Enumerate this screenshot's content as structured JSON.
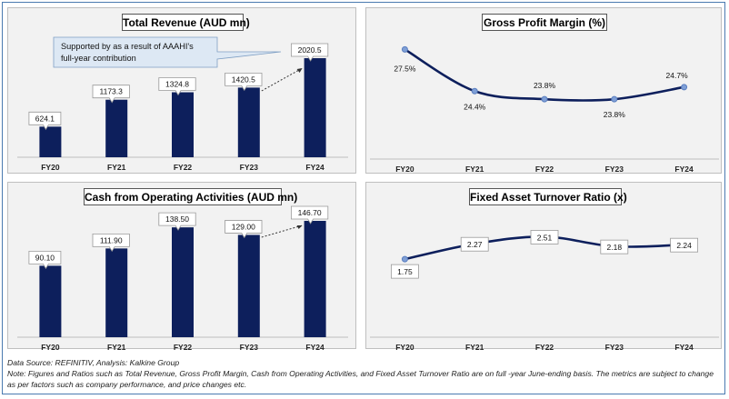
{
  "chart_data": [
    {
      "type": "bar",
      "title": "Total Revenue (AUD mn)",
      "categories": [
        "FY20",
        "FY21",
        "FY22",
        "FY23",
        "FY24"
      ],
      "values": [
        624.1,
        1173.3,
        1324.8,
        1420.5,
        2020.5
      ],
      "labels": [
        "624.1",
        "1173.3",
        "1324.8",
        "1420.5",
        "2020.5"
      ],
      "annotation": "Supported by as a result of AAAHI's full-year contribution",
      "color": "#0d1f5c",
      "ylim": [
        0,
        2020.5
      ]
    },
    {
      "type": "line",
      "title": "Gross Profit Margin (%)",
      "categories": [
        "FY20",
        "FY21",
        "FY22",
        "FY23",
        "FY24"
      ],
      "values": [
        27.5,
        24.4,
        23.8,
        23.8,
        24.7
      ],
      "labels": [
        "27.5%",
        "24.4%",
        "23.8%",
        "23.8%",
        "24.7%"
      ],
      "color": "#0d1f5c",
      "ylim": [
        23,
        28
      ]
    },
    {
      "type": "bar",
      "title": "Cash from Operating Activities (AUD mn)",
      "categories": [
        "FY20",
        "FY21",
        "FY22",
        "FY23",
        "FY24"
      ],
      "values": [
        90.1,
        111.9,
        138.5,
        129.0,
        146.7
      ],
      "labels": [
        "90.10",
        "111.90",
        "138.50",
        "129.00",
        "146.70"
      ],
      "color": "#0d1f5c",
      "ylim": [
        0,
        146.7
      ]
    },
    {
      "type": "line",
      "title": "Fixed Asset Turnover Ratio (x)",
      "categories": [
        "FY20",
        "FY21",
        "FY22",
        "FY23",
        "FY24"
      ],
      "values": [
        1.75,
        2.27,
        2.51,
        2.18,
        2.24
      ],
      "labels": [
        "1.75",
        "2.27",
        "2.51",
        "2.18",
        "2.24"
      ],
      "color": "#0d1f5c",
      "ylim": [
        1.2,
        2.8
      ]
    }
  ],
  "footer": {
    "source": "Data Source: REFINITIV, Analysis: Kalkine Group",
    "note": "Note: Figures and Ratios such as Total Revenue, Gross Profit Margin, Cash from Operating Activities, and Fixed Asset Turnover Ratio are on full -year June-ending basis. The metrics are subject to change as per factors such as company performance, and price changes etc."
  }
}
